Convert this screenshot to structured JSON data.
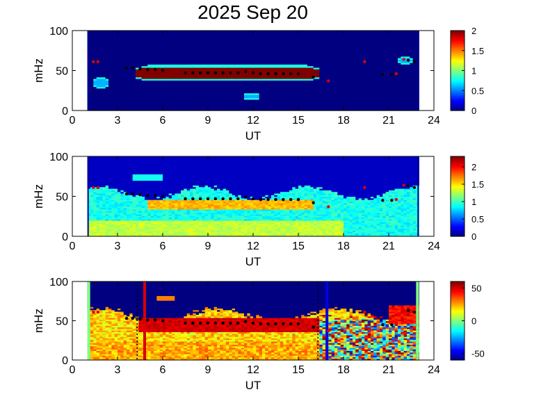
{
  "title": "2025 Sep 20",
  "chart_data": [
    {
      "type": "heatmap",
      "panel": "top",
      "xlabel": "UT",
      "ylabel": "mHz",
      "xlim": [
        0,
        24
      ],
      "ylim": [
        0,
        100
      ],
      "xticks": [
        0,
        3,
        6,
        9,
        12,
        15,
        18,
        21,
        24
      ],
      "yticks": [
        0,
        50,
        100
      ],
      "data_extent_x": [
        1,
        23
      ],
      "colorbar": {
        "min": 0,
        "max": 2,
        "ticks": [
          0,
          0.5,
          1,
          1.5,
          2
        ],
        "tick_labels": [
          "0",
          "0.5",
          "1",
          "1.5",
          "2"
        ]
      },
      "background_value": 0,
      "features": [
        {
          "name": "main band",
          "x": [
            4.3,
            16.3
          ],
          "y_center": 47,
          "y_half_width": 8,
          "value": 2
        },
        {
          "name": "small patch",
          "x": [
            1.5,
            2.3
          ],
          "y_center": 35,
          "y_half_width": 6,
          "value": 0.6
        },
        {
          "name": "small patch",
          "x": [
            11.4,
            12.3
          ],
          "y_center": 18,
          "y_half_width": 2,
          "value": 0.6
        },
        {
          "name": "small patch",
          "x": [
            21.6,
            22.6
          ],
          "y_center": 63,
          "y_half_width": 3,
          "value": 0.6
        }
      ],
      "black_markers": [
        [
          3.6,
          53
        ],
        [
          4.0,
          53
        ],
        [
          4.5,
          52
        ],
        [
          5.0,
          51
        ],
        [
          5.5,
          51
        ],
        [
          6.0,
          50
        ],
        [
          7.5,
          47
        ],
        [
          8.0,
          47
        ],
        [
          8.5,
          47
        ],
        [
          9.0,
          47
        ],
        [
          9.5,
          47
        ],
        [
          10.0,
          47
        ],
        [
          10.5,
          47
        ],
        [
          11.0,
          47
        ],
        [
          11.5,
          49
        ],
        [
          12.0,
          47
        ],
        [
          12.5,
          46
        ],
        [
          13.0,
          46
        ],
        [
          13.5,
          46
        ],
        [
          14.0,
          46
        ],
        [
          14.5,
          46
        ],
        [
          15.0,
          46
        ],
        [
          16.0,
          42
        ],
        [
          20.6,
          45
        ],
        [
          21.2,
          45
        ],
        [
          22.3,
          63
        ],
        [
          22.7,
          61
        ]
      ],
      "red_markers": [
        [
          1.4,
          61
        ],
        [
          1.7,
          61
        ],
        [
          17.0,
          37
        ],
        [
          19.4,
          61
        ],
        [
          21.5,
          46
        ],
        [
          22.0,
          64
        ]
      ]
    },
    {
      "type": "heatmap",
      "panel": "middle",
      "xlabel": "UT",
      "ylabel": "mHz",
      "xlim": [
        0,
        24
      ],
      "ylim": [
        0,
        100
      ],
      "xticks": [
        0,
        3,
        6,
        9,
        12,
        15,
        18,
        21,
        24
      ],
      "yticks": [
        0,
        50,
        100
      ],
      "data_extent_x": [
        1,
        23
      ],
      "colorbar": {
        "min": 0,
        "max": 2.3,
        "ticks": [
          0,
          0.5,
          1,
          1.5,
          2
        ],
        "tick_labels": [
          "0",
          "0.5",
          "1",
          "1.5",
          "2"
        ]
      },
      "background_value": 0.15,
      "features": [
        {
          "name": "diffuse field",
          "x": [
            1,
            23
          ],
          "y": [
            0,
            55
          ],
          "value": 0.9
        },
        {
          "name": "enhanced band",
          "x": [
            5,
            16
          ],
          "y_center": 40,
          "y_half_width": 7,
          "value": 1.6
        },
        {
          "name": "low-frequency enhancement",
          "x": [
            1,
            18
          ],
          "y": [
            0,
            20
          ],
          "value": 1.3
        }
      ],
      "black_markers": [
        [
          3.6,
          53
        ],
        [
          4.0,
          53
        ],
        [
          4.5,
          52
        ],
        [
          5.0,
          51
        ],
        [
          5.5,
          51
        ],
        [
          6.0,
          50
        ],
        [
          7.5,
          47
        ],
        [
          8.0,
          47
        ],
        [
          8.5,
          47
        ],
        [
          9.0,
          47
        ],
        [
          9.5,
          47
        ],
        [
          10.0,
          47
        ],
        [
          10.5,
          47
        ],
        [
          11.0,
          47
        ],
        [
          11.5,
          49
        ],
        [
          12.0,
          47
        ],
        [
          12.5,
          46
        ],
        [
          13.0,
          46
        ],
        [
          13.5,
          46
        ],
        [
          14.0,
          46
        ],
        [
          14.5,
          46
        ],
        [
          15.0,
          46
        ],
        [
          16.0,
          42
        ],
        [
          20.6,
          45
        ],
        [
          21.2,
          45
        ],
        [
          22.3,
          63
        ],
        [
          22.7,
          61
        ]
      ],
      "red_markers": [
        [
          1.4,
          61
        ],
        [
          1.7,
          61
        ],
        [
          17.0,
          37
        ],
        [
          19.4,
          61
        ],
        [
          21.5,
          46
        ],
        [
          22.0,
          64
        ]
      ]
    },
    {
      "type": "heatmap",
      "panel": "bottom",
      "xlabel": "UT",
      "ylabel": "mHz",
      "xlim": [
        0,
        24
      ],
      "ylim": [
        0,
        100
      ],
      "xticks": [
        0,
        3,
        6,
        9,
        12,
        15,
        18,
        21,
        24
      ],
      "yticks": [
        0,
        50,
        100
      ],
      "data_extent_x": [
        1,
        23
      ],
      "colorbar": {
        "min": -60,
        "max": 60,
        "ticks": [
          -50,
          0,
          50
        ],
        "tick_labels": [
          "-50",
          "0",
          "50"
        ]
      },
      "background_value": -60,
      "edge_value": 0,
      "features": [
        {
          "name": "strong band",
          "x": [
            4.5,
            16.5
          ],
          "y_center": 45,
          "y_half_width": 10,
          "value": 50
        },
        {
          "name": "noisy region",
          "x": [
            16.5,
            23
          ],
          "y": [
            0,
            55
          ],
          "value": 5
        }
      ],
      "vertical_lines": [
        {
          "x": 4.8,
          "color": "#d90000",
          "style": "solid"
        },
        {
          "x": 16.9,
          "color": "#0000e6",
          "style": "solid"
        },
        {
          "x": 4.3,
          "color": "#000000",
          "style": "dotted"
        },
        {
          "x": 16.3,
          "color": "#000000",
          "style": "dotted"
        }
      ],
      "black_markers": [
        [
          3.6,
          53
        ],
        [
          4.0,
          53
        ],
        [
          4.5,
          52
        ],
        [
          5.0,
          51
        ],
        [
          5.5,
          51
        ],
        [
          6.0,
          50
        ],
        [
          7.5,
          47
        ],
        [
          8.0,
          47
        ],
        [
          8.5,
          47
        ],
        [
          9.0,
          47
        ],
        [
          9.5,
          47
        ],
        [
          10.0,
          47
        ],
        [
          10.5,
          47
        ],
        [
          11.0,
          47
        ],
        [
          11.5,
          49
        ],
        [
          12.0,
          47
        ],
        [
          12.5,
          46
        ],
        [
          13.0,
          46
        ],
        [
          13.5,
          46
        ],
        [
          14.0,
          46
        ],
        [
          14.5,
          46
        ],
        [
          15.0,
          46
        ],
        [
          16.0,
          42
        ],
        [
          20.6,
          45
        ],
        [
          21.2,
          45
        ],
        [
          22.3,
          63
        ],
        [
          22.7,
          61
        ]
      ],
      "red_markers": [
        [
          1.4,
          61
        ],
        [
          1.7,
          61
        ],
        [
          17.0,
          37
        ],
        [
          19.4,
          61
        ],
        [
          21.5,
          46
        ],
        [
          22.0,
          64
        ]
      ]
    }
  ]
}
